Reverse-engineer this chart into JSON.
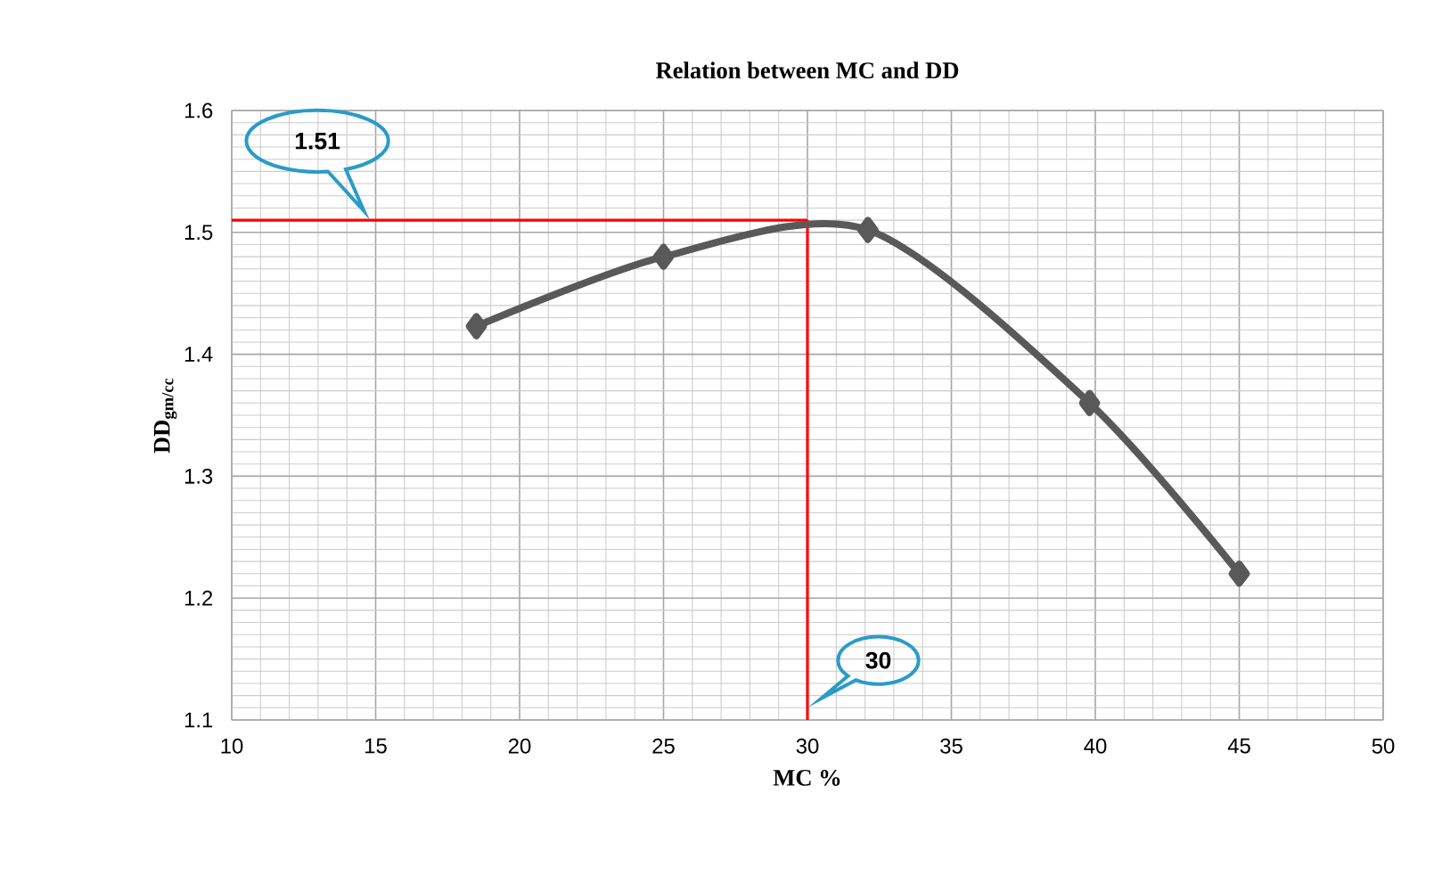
{
  "chart_data": {
    "type": "line",
    "title": "Relation between MC and DD",
    "xlabel": "MC %",
    "ylabel": "DD$_{gm/cc}$",
    "x": [
      18.5,
      25,
      32.1,
      39.8,
      45
    ],
    "series": [
      {
        "color": "#595959",
        "values": [
          1.423,
          1.48,
          1.502,
          1.36,
          1.22
        ]
      }
    ],
    "xlim": [
      10,
      50
    ],
    "xticks": [
      10,
      15,
      20,
      25,
      30,
      35,
      40,
      45,
      50
    ],
    "ylim": [
      1.1,
      1.6
    ],
    "yticks": [
      {
        "value": 1.1,
        "label": "1.1"
      },
      {
        "value": 1.2,
        "label": "1.2"
      },
      {
        "value": 1.3,
        "label": "1.3"
      },
      {
        "value": 1.4,
        "label": "1.4"
      },
      {
        "value": 1.5,
        "label": "1.5"
      },
      {
        "value": 1.6,
        "label": "1.6"
      }
    ],
    "grid": true,
    "marker": "diamond",
    "line_style": "solid",
    "ref_lines": [
      {
        "axis": "y",
        "value": 1.51,
        "label": "1.51",
        "color": "#ff0000"
      },
      {
        "axis": "x",
        "value": 30,
        "label": "30",
        "color": "#ff0000"
      }
    ]
  }
}
